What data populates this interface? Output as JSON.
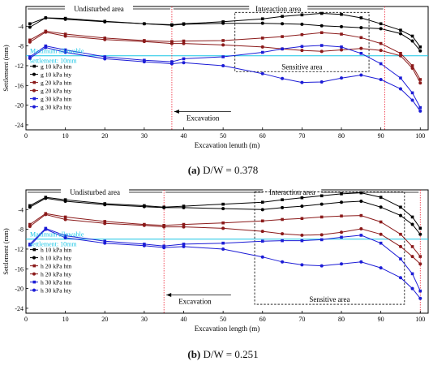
{
  "chart_data": [
    {
      "type": "line",
      "caption_letter": "(a)",
      "caption_text": "D/W = 0.378",
      "xlabel": "Excavation lenuth (m)",
      "ylabel": "Settlement (mm)",
      "xlim": [
        0,
        102
      ],
      "ylim": [
        -25,
        0
      ],
      "xticks": [
        0,
        10,
        20,
        30,
        40,
        50,
        60,
        70,
        80,
        90,
        100
      ],
      "yticks": [
        -4,
        -8,
        -12,
        -16,
        -20,
        -24
      ],
      "regions": {
        "undisturbed": "Undisturbed area",
        "interaction": "Interaction area",
        "sensitive": "Sensitive area",
        "excavation": "Excavation"
      },
      "region_x": {
        "undisturbed_end": 37,
        "interaction_end": 91
      },
      "sensitive_box": {
        "x": [
          53,
          87
        ],
        "y": [
          -1.2,
          -13.2
        ]
      },
      "allowable": {
        "value": -10,
        "label_line1": "Maximum allowable",
        "label_line2": "settlement: 10mm"
      },
      "series": [
        {
          "name": "g 10 kPa htn",
          "color": "#000000",
          "x": [
            1,
            5,
            10,
            20,
            30,
            37,
            40,
            50,
            60,
            65,
            70,
            75,
            80,
            85,
            90,
            95,
            98,
            100
          ],
          "y": [
            -3.5,
            -2.3,
            -2.4,
            -3.0,
            -3.5,
            -3.7,
            -3.5,
            -3.1,
            -2.5,
            -2.0,
            -1.7,
            -1.4,
            -1.6,
            -2.3,
            -3.5,
            -4.8,
            -6.0,
            -8.2
          ]
        },
        {
          "name": "g 10 kPa hty",
          "color": "#000000",
          "x": [
            1,
            5,
            10,
            20,
            30,
            37,
            40,
            50,
            60,
            65,
            70,
            75,
            80,
            85,
            90,
            95,
            98,
            100
          ],
          "y": [
            -4.2,
            -2.3,
            -2.6,
            -3.1,
            -3.5,
            -3.8,
            -3.6,
            -3.4,
            -3.4,
            -3.5,
            -3.6,
            -3.9,
            -4.1,
            -4.3,
            -4.5,
            -5.5,
            -7.0,
            -9.0
          ]
        },
        {
          "name": "g 20 kPa htn",
          "color": "#8b1a1a",
          "x": [
            1,
            5,
            10,
            20,
            30,
            37,
            40,
            50,
            60,
            65,
            70,
            75,
            80,
            85,
            90,
            95,
            98,
            100
          ],
          "y": [
            -6.8,
            -5.0,
            -5.6,
            -6.4,
            -6.9,
            -7.1,
            -7.0,
            -6.9,
            -6.4,
            -6.1,
            -5.7,
            -5.3,
            -5.6,
            -6.3,
            -7.5,
            -9.5,
            -12.0,
            -14.8
          ]
        },
        {
          "name": "g 20 kPa hty",
          "color": "#8b1a1a",
          "x": [
            1,
            5,
            10,
            20,
            30,
            37,
            40,
            50,
            60,
            65,
            70,
            75,
            80,
            85,
            90,
            95,
            98,
            100
          ],
          "y": [
            -7.2,
            -5.2,
            -6.0,
            -6.7,
            -7.1,
            -7.5,
            -7.5,
            -7.8,
            -8.2,
            -8.6,
            -8.9,
            -9.1,
            -8.8,
            -8.5,
            -8.9,
            -10.0,
            -12.5,
            -15.5
          ]
        },
        {
          "name": "g 30 kPa htn",
          "color": "#1c1cd6",
          "x": [
            1,
            5,
            10,
            20,
            30,
            37,
            40,
            50,
            60,
            65,
            70,
            75,
            80,
            85,
            90,
            95,
            98,
            100
          ],
          "y": [
            -10.2,
            -8.0,
            -8.8,
            -10.2,
            -10.9,
            -11.2,
            -10.6,
            -10.2,
            -9.3,
            -8.6,
            -8.1,
            -7.9,
            -8.2,
            -9.5,
            -11.6,
            -14.5,
            -17.5,
            -20.5
          ]
        },
        {
          "name": "g 30 kPa hty",
          "color": "#1c1cd6",
          "x": [
            1,
            5,
            10,
            20,
            30,
            37,
            40,
            50,
            60,
            65,
            70,
            75,
            80,
            85,
            90,
            95,
            98,
            100
          ],
          "y": [
            -10.5,
            -8.3,
            -9.3,
            -10.6,
            -11.2,
            -11.6,
            -11.4,
            -12.0,
            -13.6,
            -14.6,
            -15.4,
            -15.3,
            -14.5,
            -13.9,
            -14.8,
            -16.7,
            -19.0,
            -21.2
          ]
        }
      ]
    },
    {
      "type": "line",
      "caption_letter": "(b)",
      "caption_text": "D/W = 0.251",
      "xlabel": "Excavation length (m)",
      "ylabel": "Settlement (mm)",
      "xlim": [
        0,
        102
      ],
      "ylim": [
        -25,
        0
      ],
      "xticks": [
        0,
        10,
        20,
        30,
        40,
        50,
        60,
        70,
        80,
        90,
        100
      ],
      "yticks": [
        -4,
        -8,
        -12,
        -16,
        -20,
        -24
      ],
      "regions": {
        "undisturbed": "Undisturbed area",
        "interaction": "Interaction area",
        "sensitive": "Sensitive area",
        "excavation": "Excavation"
      },
      "region_x": {
        "undisturbed_end": 35,
        "interaction_end": 100
      },
      "sensitive_box": {
        "x": [
          58,
          96
        ],
        "y": [
          -0.4,
          -23.2
        ]
      },
      "allowable": {
        "value": -10,
        "label_line1": "Maximum allowable",
        "label_line2": "settlement: 10mm"
      },
      "series": [
        {
          "name": "h 10 kPa htn",
          "color": "#000000",
          "x": [
            1,
            5,
            10,
            20,
            30,
            35,
            40,
            50,
            60,
            65,
            70,
            75,
            80,
            85,
            90,
            95,
            98,
            100
          ],
          "y": [
            -3.2,
            -1.5,
            -2.0,
            -2.8,
            -3.2,
            -3.5,
            -3.3,
            -2.9,
            -2.5,
            -2.0,
            -1.6,
            -1.2,
            -0.8,
            -0.6,
            -1.5,
            -3.5,
            -5.5,
            -7.8
          ]
        },
        {
          "name": "h 10 kPa hty",
          "color": "#000000",
          "x": [
            1,
            5,
            10,
            20,
            30,
            35,
            40,
            50,
            60,
            65,
            70,
            75,
            80,
            85,
            90,
            95,
            98,
            100
          ],
          "y": [
            -3.5,
            -1.7,
            -2.3,
            -3.0,
            -3.4,
            -3.6,
            -3.6,
            -3.8,
            -4.0,
            -3.6,
            -3.3,
            -2.9,
            -2.5,
            -2.3,
            -3.5,
            -5.2,
            -7.0,
            -9.0
          ]
        },
        {
          "name": "h 20 kPa htn",
          "color": "#8b1a1a",
          "x": [
            1,
            5,
            10,
            20,
            30,
            35,
            40,
            50,
            60,
            65,
            70,
            75,
            80,
            85,
            90,
            95,
            98,
            100
          ],
          "y": [
            -7.0,
            -4.8,
            -5.5,
            -6.4,
            -7.0,
            -7.2,
            -7.0,
            -6.7,
            -6.3,
            -6.0,
            -5.8,
            -5.5,
            -5.3,
            -5.2,
            -6.5,
            -9.0,
            -11.5,
            -13.5
          ]
        },
        {
          "name": "h 20 kPa hty",
          "color": "#8b1a1a",
          "x": [
            1,
            5,
            10,
            20,
            30,
            35,
            40,
            50,
            60,
            65,
            70,
            75,
            80,
            85,
            90,
            95,
            98,
            100
          ],
          "y": [
            -7.4,
            -5.0,
            -6.0,
            -6.8,
            -7.2,
            -7.5,
            -7.5,
            -7.8,
            -8.4,
            -8.9,
            -9.2,
            -9.1,
            -8.6,
            -7.9,
            -9.0,
            -11.5,
            -13.5,
            -15.0
          ]
        },
        {
          "name": "h 30 kPa htn",
          "color": "#1c1cd6",
          "x": [
            1,
            5,
            10,
            20,
            30,
            35,
            40,
            50,
            60,
            65,
            70,
            75,
            80,
            85,
            90,
            95,
            98,
            100
          ],
          "y": [
            -11.0,
            -7.8,
            -9.3,
            -10.4,
            -11.0,
            -11.4,
            -11.0,
            -10.8,
            -10.4,
            -10.3,
            -10.3,
            -10.1,
            -9.6,
            -9.2,
            -10.8,
            -14.0,
            -17.0,
            -20.5
          ]
        },
        {
          "name": "h 30 kPa hty",
          "color": "#1c1cd6",
          "x": [
            1,
            5,
            10,
            20,
            30,
            35,
            40,
            50,
            60,
            65,
            70,
            75,
            80,
            85,
            90,
            95,
            98,
            100
          ],
          "y": [
            -11.3,
            -8.0,
            -9.7,
            -10.8,
            -11.3,
            -11.7,
            -11.5,
            -12.0,
            -13.6,
            -14.6,
            -15.2,
            -15.4,
            -15.0,
            -14.6,
            -15.8,
            -17.8,
            -20.0,
            -22.0
          ]
        }
      ]
    }
  ]
}
